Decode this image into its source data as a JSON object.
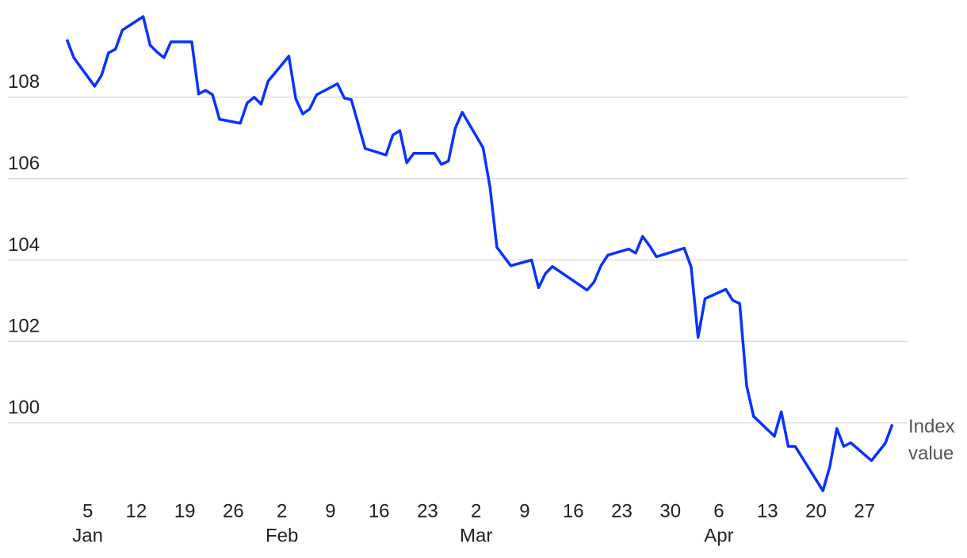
{
  "chart_data": {
    "type": "line",
    "annotation": [
      "Index",
      "value"
    ],
    "x": [
      2,
      3,
      6,
      7,
      8,
      9,
      10,
      13,
      14,
      15,
      16,
      17,
      20,
      21,
      22,
      23,
      24,
      27,
      28,
      29,
      30,
      31,
      34,
      35,
      36,
      37,
      38,
      41,
      42,
      43,
      45,
      48,
      49,
      50,
      51,
      52,
      55,
      56,
      57,
      58,
      59,
      62,
      63,
      64,
      66,
      69,
      70,
      71,
      72,
      77,
      78,
      79,
      80,
      83,
      84,
      85,
      86,
      87,
      91,
      92,
      93,
      94,
      97,
      98,
      99,
      100,
      101,
      104,
      105,
      106,
      107,
      111,
      112,
      113,
      114,
      115,
      118,
      120,
      121
    ],
    "series": [
      {
        "name": "Index value",
        "color": "#0a32ff",
        "values": [
          109.42,
          108.97,
          108.27,
          108.54,
          109.09,
          109.18,
          109.65,
          109.98,
          109.28,
          109.11,
          108.97,
          109.36,
          109.36,
          108.08,
          108.17,
          108.06,
          107.46,
          107.36,
          107.86,
          108.0,
          107.83,
          108.39,
          109.01,
          107.96,
          107.59,
          107.71,
          108.06,
          108.33,
          107.98,
          107.94,
          106.74,
          106.58,
          107.07,
          107.18,
          106.39,
          106.62,
          106.62,
          106.35,
          106.43,
          107.24,
          107.63,
          106.76,
          105.79,
          104.31,
          103.86,
          104.0,
          103.32,
          103.67,
          103.84,
          103.26,
          103.46,
          103.86,
          104.12,
          104.27,
          104.17,
          104.58,
          104.35,
          104.08,
          104.29,
          103.83,
          102.1,
          103.05,
          103.28,
          103.01,
          102.93,
          100.91,
          100.16,
          99.67,
          100.27,
          99.42,
          99.42,
          98.33,
          98.93,
          99.86,
          99.42,
          99.51,
          99.07,
          99.5,
          99.96
        ]
      }
    ],
    "xlim": [
      -6.5,
      123.2
    ],
    "xticks": [
      5,
      12,
      19,
      {
        "value": 26,
        "label": "26"
      },
      {
        "value": 33,
        "label": "2"
      },
      {
        "value": 40,
        "label": "9"
      },
      {
        "value": 47,
        "label": "16"
      },
      {
        "value": 54,
        "label": "23"
      },
      {
        "value": 61,
        "label": "2"
      },
      {
        "value": 68,
        "label": "9"
      },
      {
        "value": 75,
        "label": "16"
      },
      {
        "value": 82,
        "label": "23"
      },
      {
        "value": 89,
        "label": "30"
      },
      {
        "value": 96,
        "label": "6"
      },
      {
        "value": 103,
        "label": "13"
      },
      {
        "value": 110,
        "label": "20"
      },
      {
        "value": 117,
        "label": "27"
      }
    ],
    "month_labels": [
      {
        "value": 5,
        "label": "Jan"
      },
      {
        "value": 33,
        "label": "Feb"
      },
      {
        "value": 61,
        "label": "Mar"
      },
      {
        "value": 96,
        "label": "Apr"
      }
    ],
    "ylim": [
      98,
      110
    ],
    "yticks": [
      100,
      102,
      104,
      106,
      108
    ],
    "grid": true
  }
}
